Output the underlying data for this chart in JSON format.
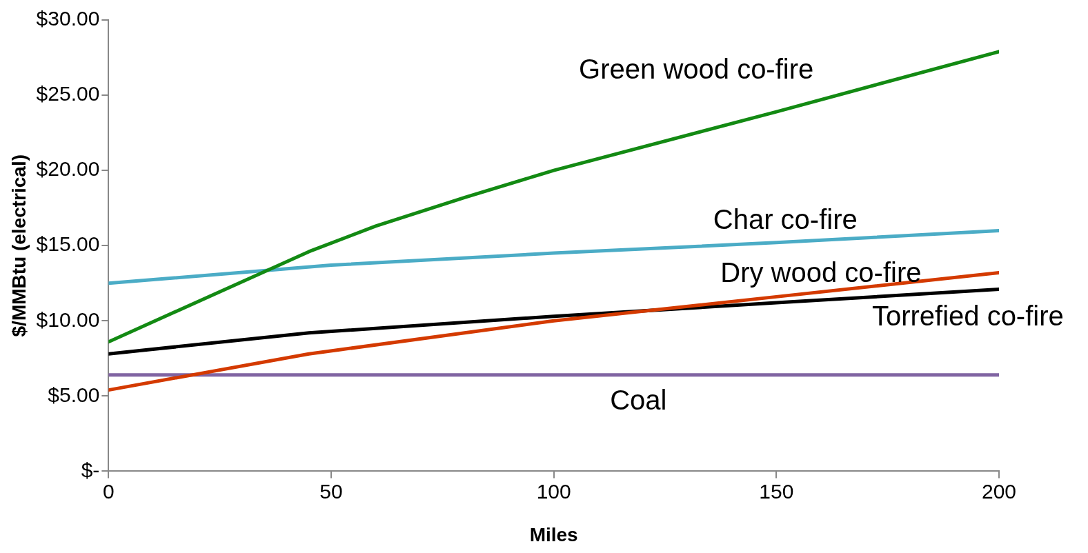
{
  "chart_data": {
    "type": "line",
    "xlabel": "Miles",
    "ylabel": "$/MMBtu (electrical)",
    "xlim": [
      0,
      200
    ],
    "xticks": [
      0,
      50,
      100,
      150,
      200
    ],
    "ylim": [
      0,
      30
    ],
    "yticks": [
      {
        "value": 0,
        "label": "$-"
      },
      {
        "value": 5,
        "label": "$5.00"
      },
      {
        "value": 10,
        "label": "$10.00"
      },
      {
        "value": 15,
        "label": "$15.00"
      },
      {
        "value": 20,
        "label": "$20.00"
      },
      {
        "value": 25,
        "label": "$25.00"
      },
      {
        "value": 30,
        "label": "$30.00"
      }
    ],
    "grid": false,
    "legend": false,
    "marker": "none",
    "line_style": "solid",
    "series": [
      {
        "name": "Green wood co-fire",
        "color": "#138a13",
        "x": [
          0,
          45,
          60,
          80,
          100,
          150,
          200
        ],
        "values": [
          8.6,
          14.6,
          16.3,
          18.2,
          20.0,
          23.9,
          27.9
        ]
      },
      {
        "name": "Char co-fire",
        "color": "#4bacc6",
        "x": [
          0,
          50,
          100,
          150,
          200
        ],
        "values": [
          12.5,
          13.7,
          14.5,
          15.2,
          16.0
        ]
      },
      {
        "name": "Dry wood co-fire",
        "color": "#d43a00",
        "x": [
          0,
          45,
          100,
          150,
          200
        ],
        "values": [
          5.4,
          7.8,
          10.0,
          11.6,
          13.2
        ]
      },
      {
        "name": "Torrefied co-fire",
        "color": "#000000",
        "x": [
          0,
          45,
          100,
          150,
          200
        ],
        "values": [
          7.8,
          9.2,
          10.3,
          11.2,
          12.1
        ]
      },
      {
        "name": "Coal",
        "color": "#8064a2",
        "x": [
          0,
          200
        ],
        "values": [
          6.4,
          6.4
        ]
      }
    ]
  }
}
